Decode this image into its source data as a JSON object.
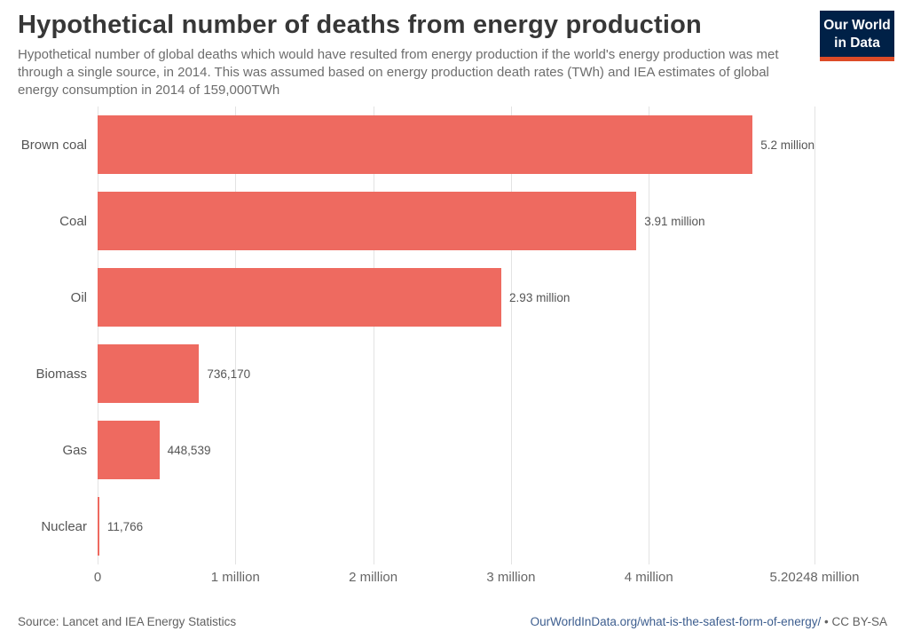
{
  "header": {
    "title": "Hypothetical number of deaths from energy production",
    "subtitle": "Hypothetical number of global deaths which would have resulted from energy production if the world's energy production was met through a single source, in 2014. This was assumed based on energy production death rates (TWh) and IEA estimates of global energy consumption in 2014 of 159,000TWh",
    "logo": {
      "line1": "Our World",
      "line2": "in Data"
    }
  },
  "chart_data": {
    "type": "bar",
    "orientation": "horizontal",
    "title": "Hypothetical number of deaths from energy production",
    "categories": [
      "Brown coal",
      "Coal",
      "Oil",
      "Biomass",
      "Gas",
      "Nuclear"
    ],
    "values": [
      5202480,
      3910000,
      2930000,
      736170,
      448539,
      11766
    ],
    "value_labels": [
      "5.2 million",
      "3.91 million",
      "2.93 million",
      "736,170",
      "448,539",
      "11,766"
    ],
    "xlim": [
      0,
      5202480
    ],
    "x_ticks": [
      {
        "label": "0",
        "value": 0
      },
      {
        "label": "1 million",
        "value": 1000000
      },
      {
        "label": "2 million",
        "value": 2000000
      },
      {
        "label": "3 million",
        "value": 3000000
      },
      {
        "label": "4 million",
        "value": 4000000
      },
      {
        "label": "5.20248 million",
        "value": 5202480
      }
    ],
    "grid": true,
    "legend": "none",
    "bar_color": "#ee6a60"
  },
  "footer": {
    "source": "Source: Lancet and IEA Energy Statistics",
    "link": "OurWorldInData.org/what-is-the-safest-form-of-energy/",
    "license": "• CC BY-SA"
  },
  "colors": {
    "bar": "#ee6a60",
    "logo_background": "#002147",
    "logo_stripe": "#dd4b27",
    "link": "#3d5e8f",
    "gridline": "#e3e3e3"
  }
}
